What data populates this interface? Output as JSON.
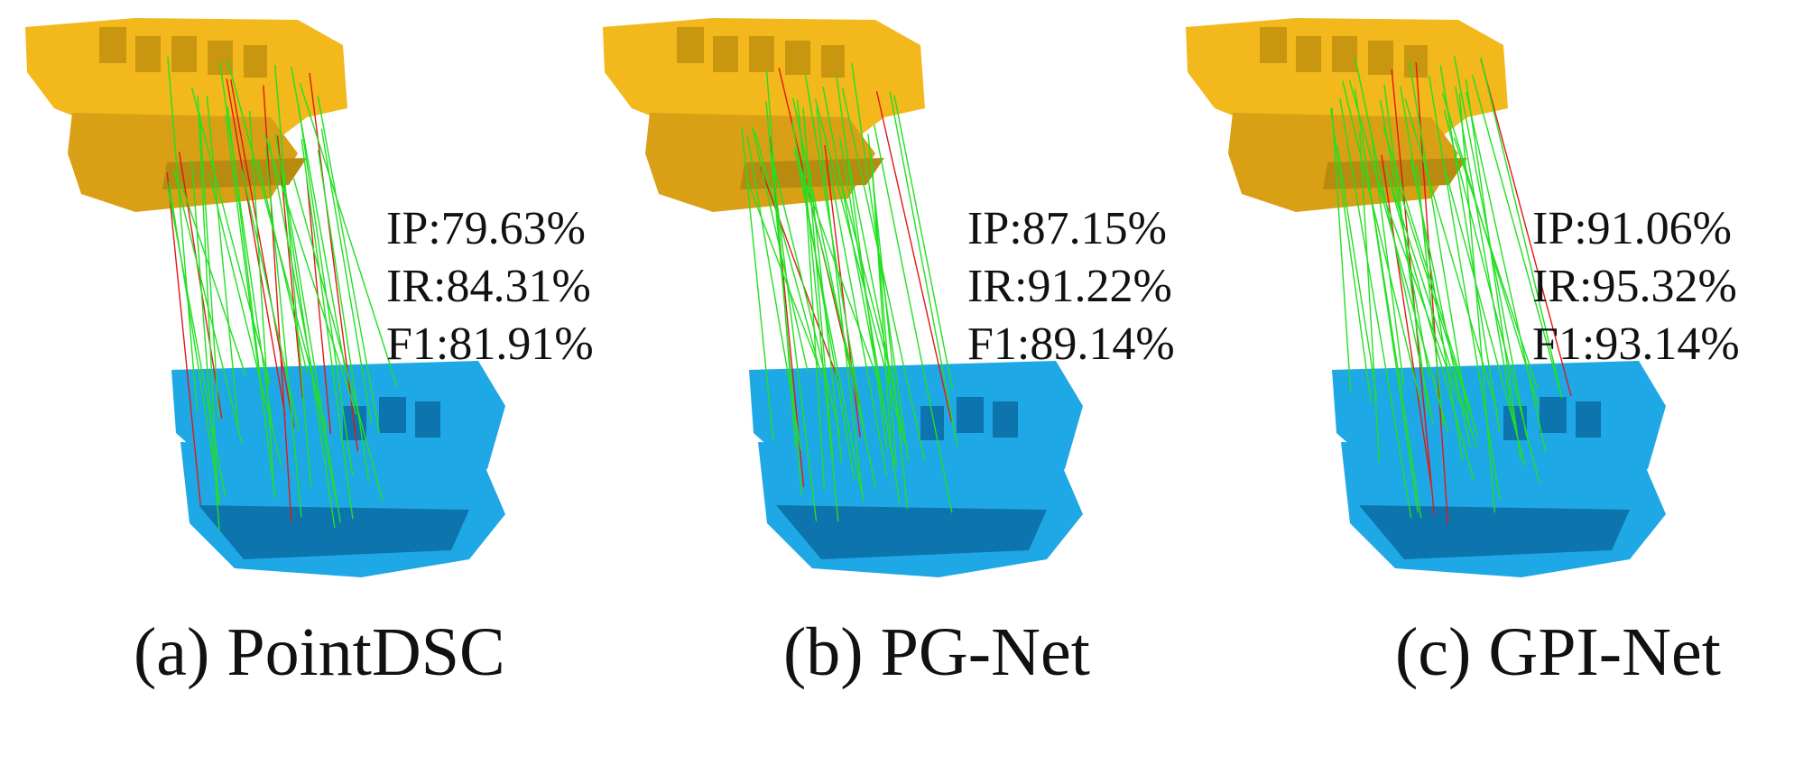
{
  "colors": {
    "source_cloud": "#f2b81c",
    "source_shadow": "#b88a10",
    "target_cloud": "#1fa8e6",
    "target_shadow": "#0d74ad",
    "inlier_line": "#22e022",
    "outlier_line": "#e01818"
  },
  "panels": [
    {
      "metrics": {
        "ip": "IP:79.63%",
        "ir": "IR:84.31%",
        "f1": "F1:81.91%"
      },
      "caption": "(a) PointDSC",
      "correspondences": {
        "inlier_fraction": 0.7963,
        "recall": 0.8431
      }
    },
    {
      "metrics": {
        "ip": "IP:87.15%",
        "ir": "IR:91.22%",
        "f1": "F1:89.14%"
      },
      "caption": "(b) PG-Net",
      "correspondences": {
        "inlier_fraction": 0.8715,
        "recall": 0.9122
      }
    },
    {
      "metrics": {
        "ip": "IP:91.06%",
        "ir": "IR:95.32%",
        "f1": "F1:93.14%"
      },
      "caption": "(c) GPI-Net",
      "correspondences": {
        "inlier_fraction": 0.9106,
        "recall": 0.9532
      }
    }
  ]
}
